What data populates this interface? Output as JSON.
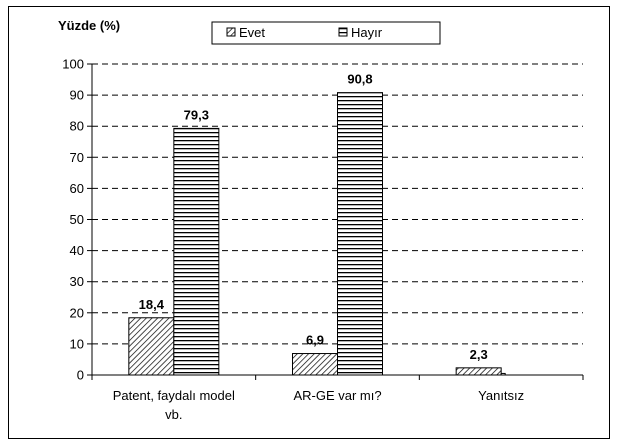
{
  "chart_data": {
    "type": "bar",
    "title": "",
    "ylabel": "Yüzde (%)",
    "xlabel": "",
    "ylim": [
      0,
      100
    ],
    "yticks": [
      0,
      10,
      20,
      30,
      40,
      50,
      60,
      70,
      80,
      90,
      100
    ],
    "grid": "dashed horizontal",
    "legend_position": "top-center",
    "categories": [
      [
        "Patent, faydalı model",
        "vb."
      ],
      [
        "AR-GE var mı?"
      ],
      [
        "Yanıtsız"
      ]
    ],
    "series": [
      {
        "name": "Evet",
        "values": [
          18.4,
          6.9,
          2.3
        ],
        "value_labels": [
          "18,4",
          "6,9",
          "2,3"
        ],
        "pattern": "diagonal-hatch"
      },
      {
        "name": "Hayır",
        "values": [
          79.3,
          90.8,
          0.5
        ],
        "value_labels": [
          "79,3",
          "90,8",
          ""
        ],
        "pattern": "horizontal-lines"
      }
    ]
  }
}
